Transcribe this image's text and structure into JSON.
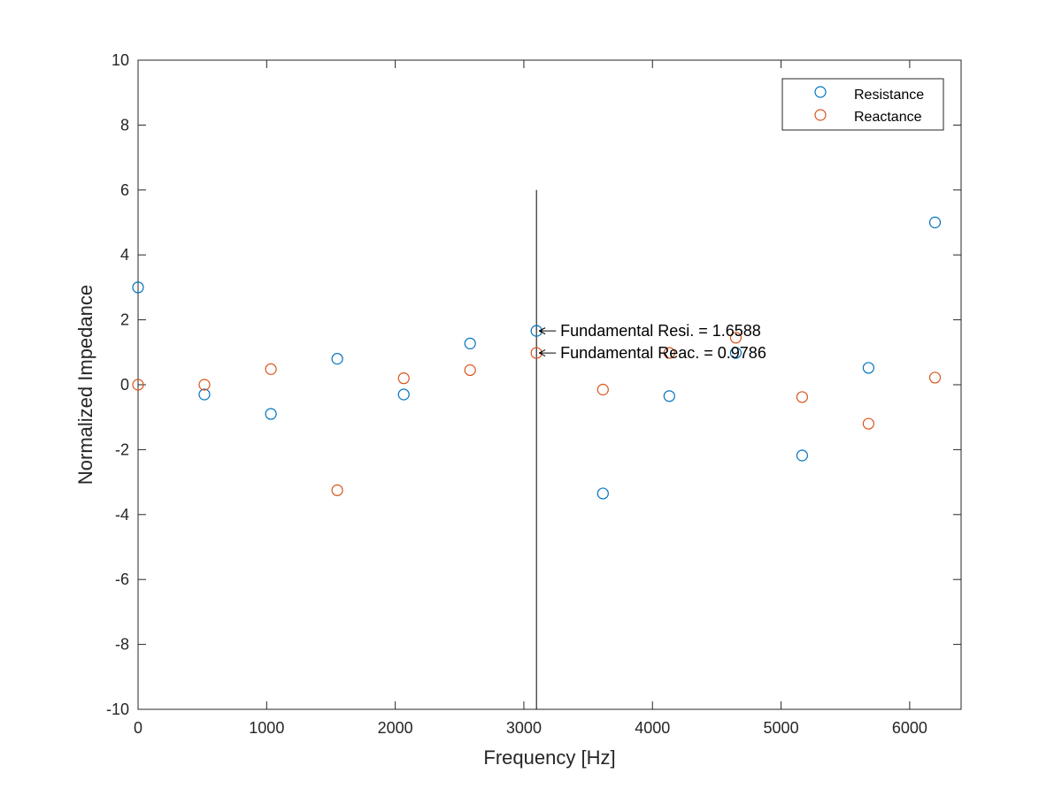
{
  "chart_data": {
    "type": "scatter",
    "title": "",
    "xlabel": "Frequency [Hz]",
    "ylabel": "Normalized Impedance",
    "xlim": [
      0,
      6400
    ],
    "ylim": [
      -10,
      10
    ],
    "xticks": [
      0,
      1000,
      2000,
      3000,
      4000,
      5000,
      6000
    ],
    "xtick_labels": [
      "0",
      "1000",
      "2000",
      "3000",
      "4000",
      "5000",
      "6000"
    ],
    "yticks": [
      -10,
      -8,
      -6,
      -4,
      -2,
      0,
      2,
      4,
      6,
      8,
      10
    ],
    "ytick_labels": [
      "-10",
      "-8",
      "-6",
      "-4",
      "-2",
      "0",
      "2",
      "4",
      "6",
      "8",
      "10"
    ],
    "grid": false,
    "legend_position": "top-right",
    "series": [
      {
        "name": "Resistance",
        "color": "#0072BD",
        "marker": "circle-open",
        "x": [
          0,
          516,
          1033,
          1549,
          2066,
          2582,
          3098,
          3615,
          4131,
          4648,
          5164,
          5680,
          6197
        ],
        "y": [
          3.0,
          -0.3,
          -0.9,
          0.8,
          -0.3,
          1.27,
          1.6588,
          -3.35,
          -0.35,
          0.98,
          -2.18,
          0.52,
          5.0
        ]
      },
      {
        "name": "Reactance",
        "color": "#D95319",
        "marker": "circle-open",
        "x": [
          0,
          516,
          1033,
          1549,
          2066,
          2582,
          3098,
          3615,
          4131,
          4648,
          5164,
          5680,
          6197
        ],
        "y": [
          0.0,
          0.0,
          0.48,
          -3.25,
          0.2,
          0.45,
          0.9786,
          -0.15,
          0.98,
          1.45,
          -0.38,
          -1.2,
          0.22
        ]
      }
    ],
    "vertical_line": {
      "x": 3098,
      "y_from": -10,
      "y_to": 6
    },
    "annotations": [
      {
        "text": "Fundamental Resi. = 1.6588",
        "x": 3098,
        "y": 1.6588
      },
      {
        "text": "Fundamental Reac. = 0.9786",
        "x": 3098,
        "y": 0.9786
      }
    ]
  }
}
